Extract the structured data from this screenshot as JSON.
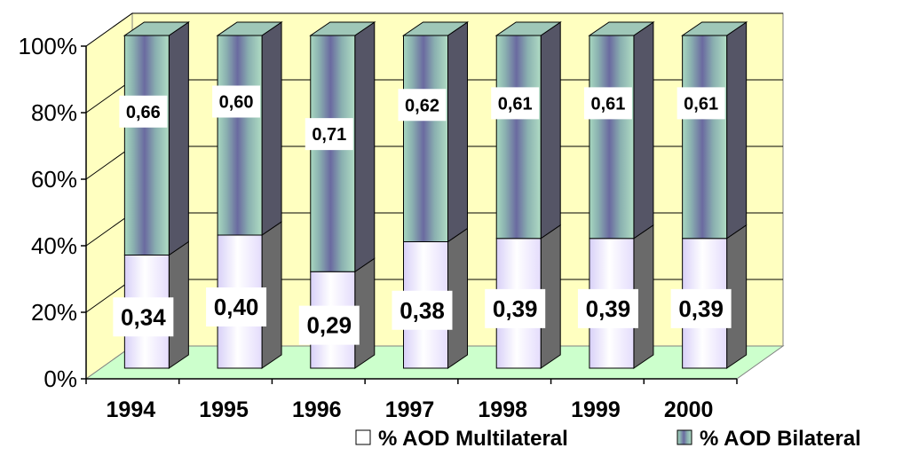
{
  "chart_data": {
    "type": "bar",
    "stacked": true,
    "percent_stacked": true,
    "three_d": true,
    "categories": [
      "1994",
      "1995",
      "1996",
      "1997",
      "1998",
      "1999",
      "2000"
    ],
    "series": [
      {
        "name": "% AOD Multilateral",
        "values": [
          0.34,
          0.4,
          0.29,
          0.38,
          0.39,
          0.39,
          0.39
        ],
        "labels": [
          "0,34",
          "0,40",
          "0,29",
          "0,38",
          "0,39",
          "0,39",
          "0,39"
        ]
      },
      {
        "name": "% AOD Bilateral",
        "values": [
          0.66,
          0.6,
          0.71,
          0.62,
          0.61,
          0.61,
          0.61
        ],
        "labels": [
          "0,66",
          "0,60",
          "0,71",
          "0,62",
          "0,61",
          "0,61",
          "0,61"
        ]
      }
    ],
    "y_ticks": [
      "0%",
      "20%",
      "40%",
      "60%",
      "80%",
      "100%"
    ],
    "ylim": [
      0,
      1
    ],
    "grid": true,
    "legend_position": "bottom-right",
    "colors": {
      "back_wall": "#ffffc0",
      "floor": "#ccffcc",
      "multilateral_face": "#f4f0ff",
      "bilateral_face": "#8a8ab8",
      "gridline": "#000000"
    }
  }
}
